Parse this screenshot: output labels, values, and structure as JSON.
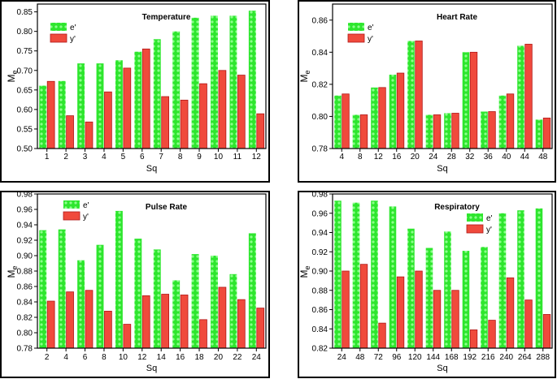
{
  "colors": {
    "e_fill": "#2ee62e",
    "e_dot": "#8cff8c",
    "y_fill": "#f04a3c",
    "y_stroke": "#b01818"
  },
  "chart_data": [
    {
      "type": "bar",
      "title": "Temperature",
      "xlabel": "Sq",
      "ylabel": "Me",
      "categories": [
        "1",
        "2",
        "3",
        "4",
        "5",
        "6",
        "7",
        "8",
        "9",
        "10",
        "11",
        "12"
      ],
      "ylim": [
        0.5,
        0.87
      ],
      "yticks": [
        0.5,
        0.55,
        0.6,
        0.65,
        0.7,
        0.75,
        0.8,
        0.85
      ],
      "ytick_labels": [
        "0.50",
        "0.55",
        "0.60",
        "0.65",
        "0.70",
        "0.75",
        "0.80",
        "0.85"
      ],
      "legend_position": "top-left",
      "series": [
        {
          "name": "e'",
          "values": [
            0.661,
            0.673,
            0.718,
            0.718,
            0.726,
            0.748,
            0.78,
            0.8,
            0.835,
            0.84,
            0.84,
            0.853
          ]
        },
        {
          "name": "y'",
          "values": [
            0.672,
            0.584,
            0.568,
            0.645,
            0.706,
            0.755,
            0.633,
            0.624,
            0.666,
            0.7,
            0.688,
            0.589
          ]
        }
      ]
    },
    {
      "type": "bar",
      "title": "Heart Rate",
      "xlabel": "Sq",
      "ylabel": "Me",
      "categories": [
        "4",
        "8",
        "12",
        "16",
        "20",
        "24",
        "28",
        "32",
        "36",
        "40",
        "44",
        "48"
      ],
      "ylim": [
        0.78,
        0.87
      ],
      "yticks": [
        0.78,
        0.8,
        0.82,
        0.84,
        0.86
      ],
      "ytick_labels": [
        "0.78",
        "0.80",
        "0.82",
        "0.84",
        "0.86"
      ],
      "legend_position": "top-left",
      "series": [
        {
          "name": "e'",
          "values": [
            0.813,
            0.801,
            0.818,
            0.826,
            0.847,
            0.801,
            0.802,
            0.84,
            0.803,
            0.813,
            0.844,
            0.798
          ]
        },
        {
          "name": "y'",
          "values": [
            0.814,
            0.801,
            0.818,
            0.827,
            0.847,
            0.801,
            0.802,
            0.84,
            0.803,
            0.814,
            0.845,
            0.799
          ]
        }
      ]
    },
    {
      "type": "bar",
      "title": "Pulse Rate",
      "xlabel": "Sq",
      "ylabel": "Me",
      "categories": [
        "2",
        "4",
        "6",
        "8",
        "10",
        "12",
        "14",
        "16",
        "18",
        "20",
        "22",
        "24"
      ],
      "ylim": [
        0.78,
        0.98
      ],
      "yticks": [
        0.78,
        0.8,
        0.82,
        0.84,
        0.86,
        0.88,
        0.9,
        0.92,
        0.94,
        0.96,
        0.98
      ],
      "ytick_labels": [
        "0.78",
        "0.80",
        "0.82",
        "0.84",
        "0.86",
        "0.88",
        "0.90",
        "0.92",
        "0.94",
        "0.96",
        "0.98"
      ],
      "legend_position": "top-left",
      "series": [
        {
          "name": "e'",
          "values": [
            0.933,
            0.934,
            0.894,
            0.914,
            0.958,
            0.922,
            0.908,
            0.868,
            0.902,
            0.9,
            0.876,
            0.929
          ]
        },
        {
          "name": "y'",
          "values": [
            0.841,
            0.853,
            0.855,
            0.828,
            0.811,
            0.848,
            0.85,
            0.849,
            0.817,
            0.859,
            0.843,
            0.832
          ]
        }
      ]
    },
    {
      "type": "bar",
      "title": "Respiratory",
      "xlabel": "Sq",
      "ylabel": "Me",
      "categories": [
        "24",
        "48",
        "72",
        "96",
        "120",
        "144",
        "168",
        "192",
        "216",
        "240",
        "264",
        "288"
      ],
      "ylim": [
        0.82,
        0.98
      ],
      "yticks": [
        0.82,
        0.84,
        0.86,
        0.88,
        0.9,
        0.92,
        0.94,
        0.96,
        0.98
      ],
      "ytick_labels": [
        "0.82",
        "0.84",
        "0.86",
        "0.88",
        "0.90",
        "0.92",
        "0.94",
        "0.96",
        "0.98"
      ],
      "legend_position": "top-right",
      "series": [
        {
          "name": "e'",
          "values": [
            0.973,
            0.971,
            0.973,
            0.967,
            0.944,
            0.924,
            0.941,
            0.921,
            0.925,
            0.96,
            0.963,
            0.965
          ]
        },
        {
          "name": "y'",
          "values": [
            0.9,
            0.907,
            0.846,
            0.894,
            0.9,
            0.88,
            0.88,
            0.839,
            0.849,
            0.893,
            0.87,
            0.855
          ]
        }
      ]
    }
  ]
}
